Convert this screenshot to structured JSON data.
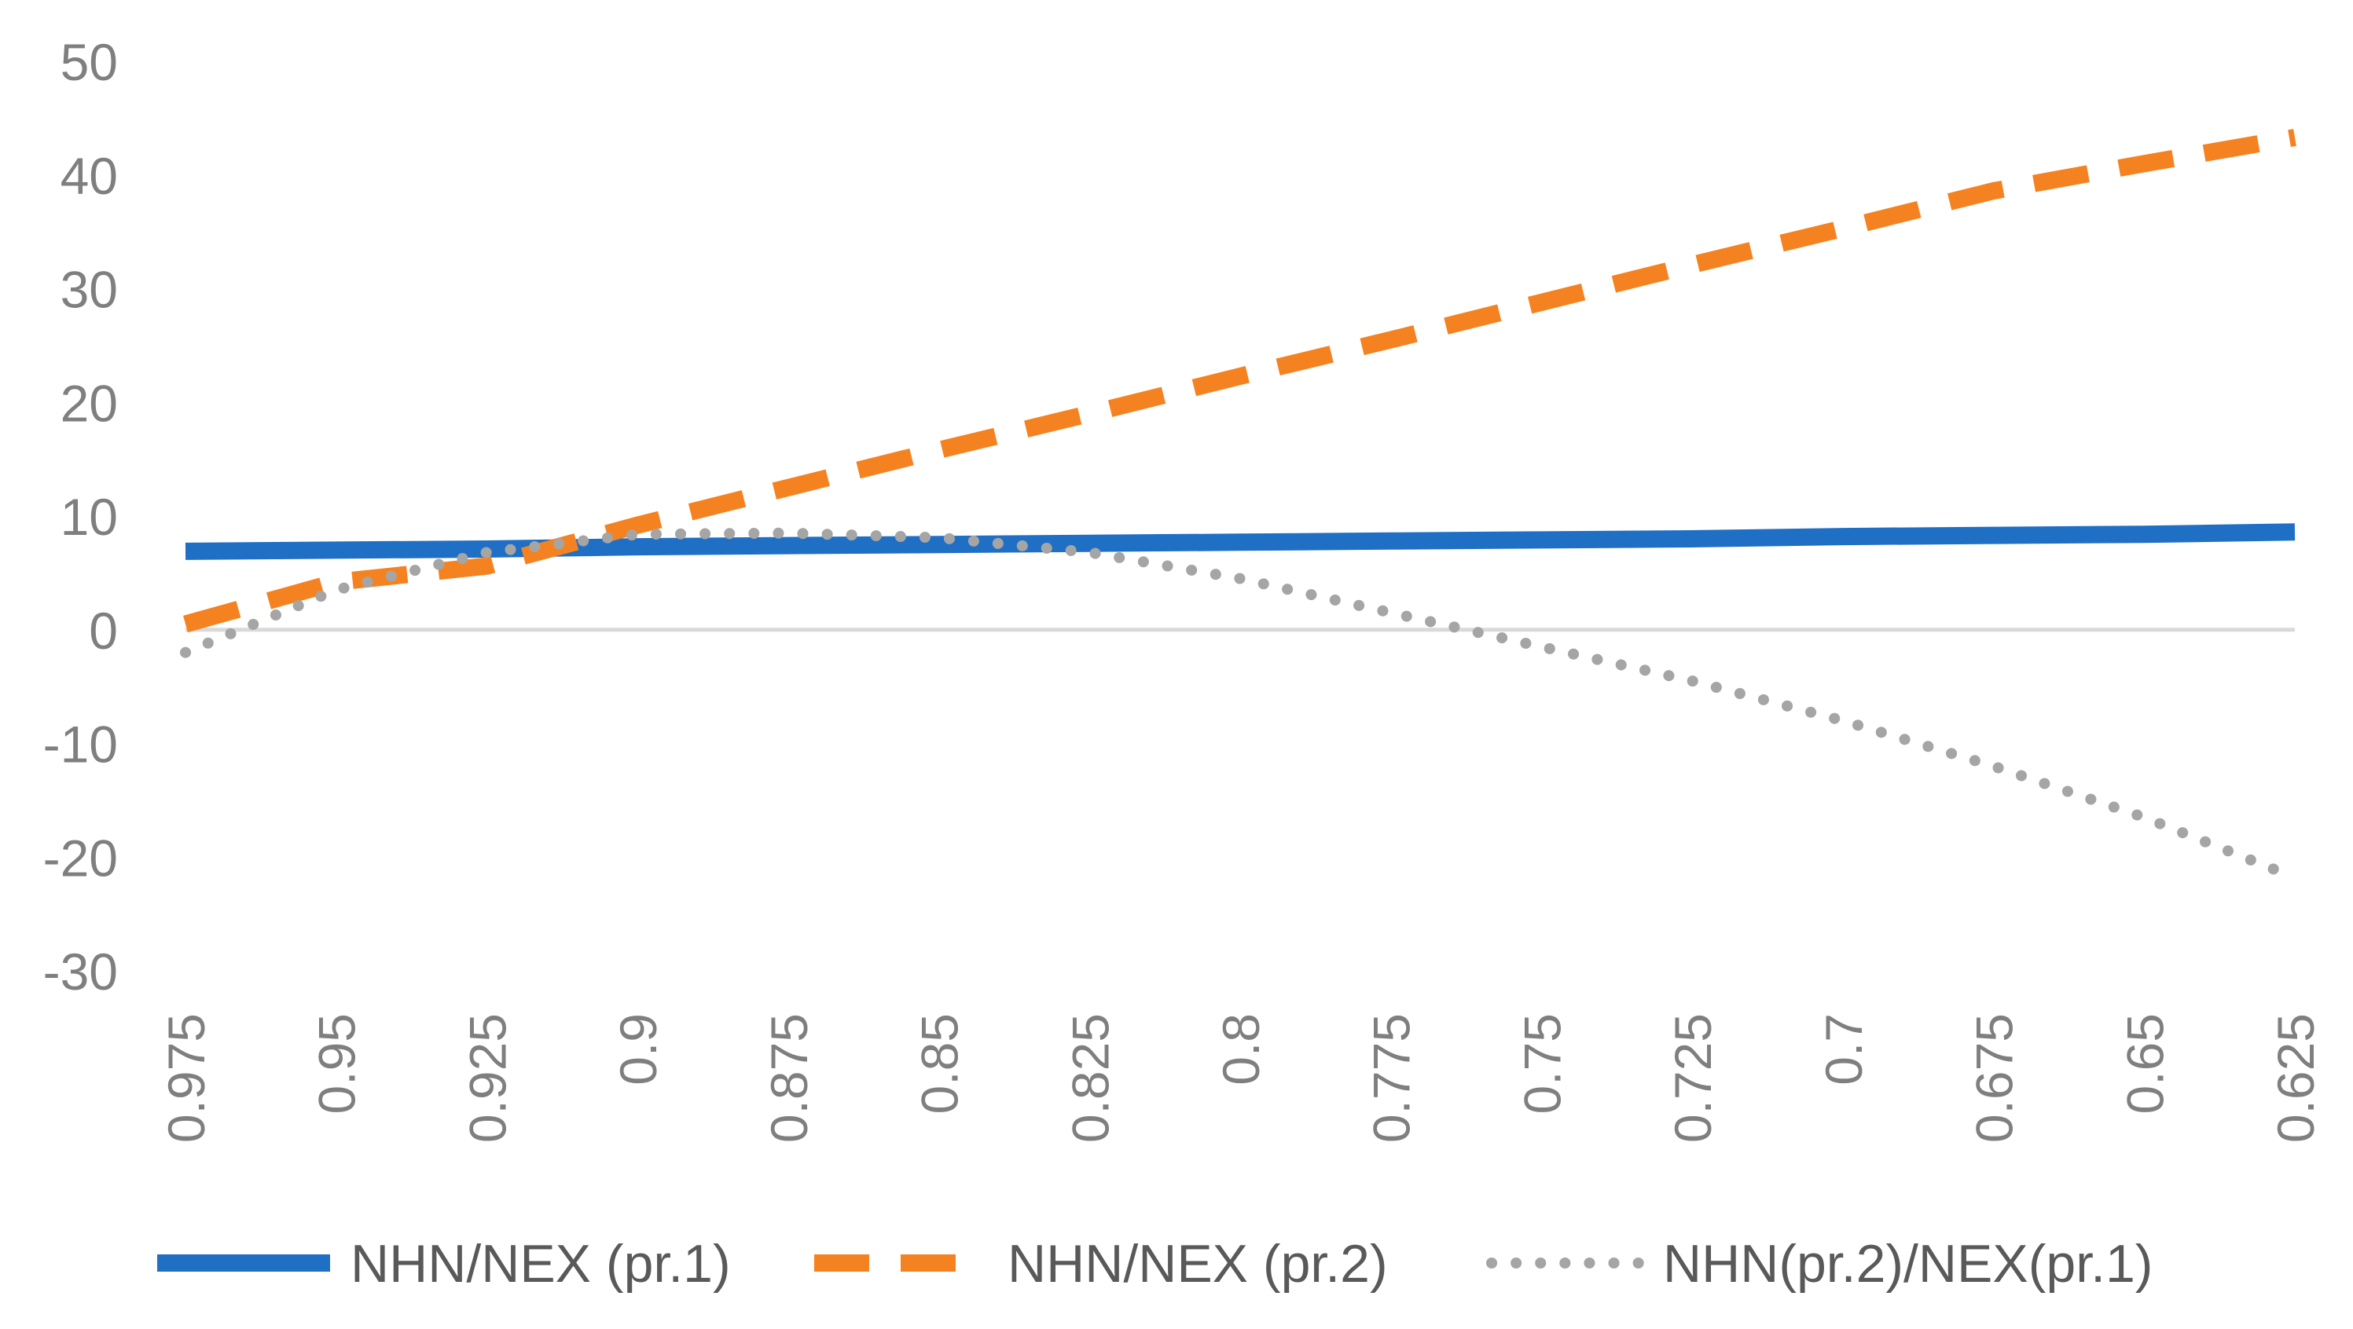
{
  "chart_data": {
    "type": "line",
    "title": "",
    "xlabel": "",
    "ylabel": "",
    "categories": [
      "0.975",
      "0.95",
      "0.925",
      "0.9",
      "0.875",
      "0.85",
      "0.825",
      "0.8",
      "0.775",
      "0.75",
      "0.725",
      "0.7",
      "0.675",
      "0.65",
      "0.625"
    ],
    "x_numeric": [
      0.975,
      0.95,
      0.925,
      0.9,
      0.875,
      0.85,
      0.825,
      0.8,
      0.775,
      0.75,
      0.725,
      0.7,
      0.675,
      0.65,
      0.625
    ],
    "ylim": [
      -30,
      50
    ],
    "yticks": [
      -30,
      -20,
      -10,
      0,
      10,
      20,
      30,
      40,
      50
    ],
    "grid": false,
    "legend_position": "bottom",
    "series": [
      {
        "name": "NHN/NEX (pr.1)",
        "style": "solid",
        "color": "#1f6fc5",
        "values": [
          6.9,
          7.0,
          7.1,
          7.3,
          7.4,
          7.5,
          7.6,
          7.7,
          7.8,
          7.9,
          8.0,
          8.2,
          8.3,
          8.4,
          8.6
        ]
      },
      {
        "name": "NHN/NEX (pr.2)",
        "style": "dashed",
        "color": "#f58220",
        "values": [
          0.5,
          4.2,
          5.6,
          9.2,
          12.5,
          15.8,
          19.0,
          22.3,
          25.5,
          28.8,
          32.1,
          35.3,
          38.6,
          41.0,
          43.3
        ]
      },
      {
        "name": "NHN(pr.2)/NEX(pr.1)",
        "style": "dotted",
        "color": "#a5a5a5",
        "values": [
          -2.0,
          3.5,
          6.8,
          8.4,
          8.5,
          8.1,
          6.8,
          4.5,
          1.5,
          -1.5,
          -4.5,
          -8.0,
          -12.0,
          -16.5,
          -21.8
        ]
      }
    ]
  }
}
